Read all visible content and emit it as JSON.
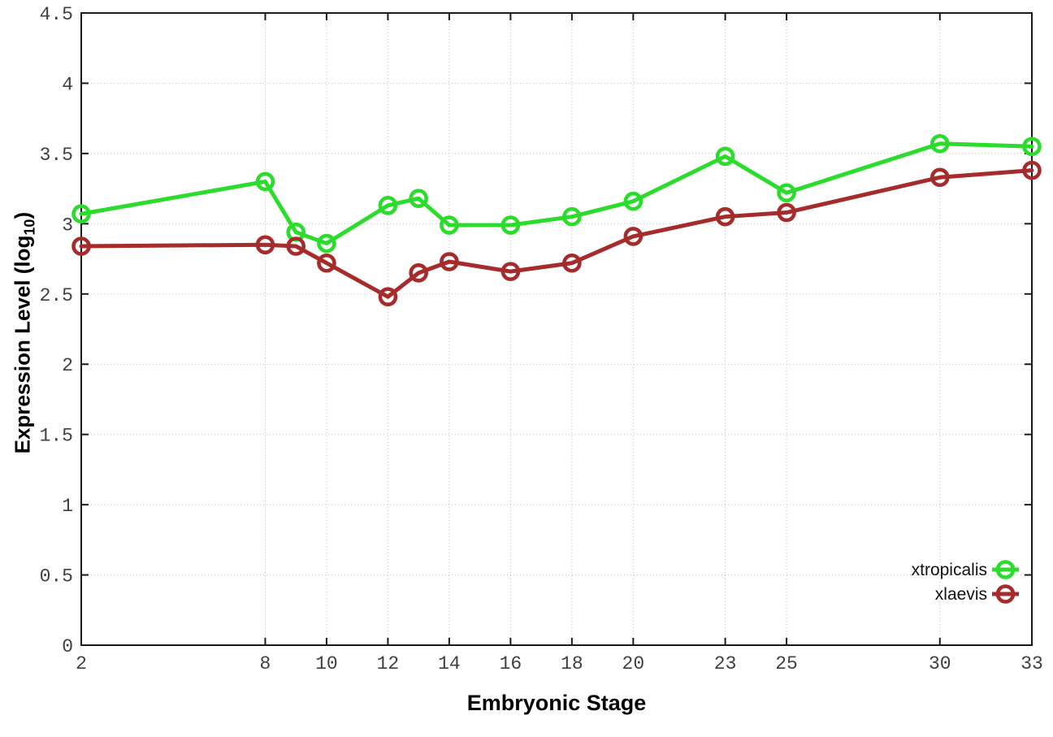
{
  "chart_data": {
    "type": "line",
    "title": "",
    "xlabel": "Embryonic Stage",
    "ylabel": "Expression Level (log10)",
    "ylabel_parts": {
      "prefix": "Expression Level (log",
      "sub": "10",
      "suffix": ")"
    },
    "xlim": [
      2,
      33
    ],
    "ylim": [
      0,
      4.5
    ],
    "grid": true,
    "legend_position": "bottom-right-inside",
    "marker": "open-circle",
    "x_ticks": [
      {
        "value": 2,
        "label": "2"
      },
      {
        "value": 8,
        "label": "8"
      },
      {
        "value": 10,
        "label": "10"
      },
      {
        "value": 12,
        "label": "12"
      },
      {
        "value": 14,
        "label": "14"
      },
      {
        "value": 16,
        "label": "16"
      },
      {
        "value": 18,
        "label": "18"
      },
      {
        "value": 20,
        "label": "20"
      },
      {
        "value": 23,
        "label": "23"
      },
      {
        "value": 25,
        "label": "25"
      },
      {
        "value": 30,
        "label": "30"
      },
      {
        "value": 33,
        "label": "33"
      }
    ],
    "y_ticks": [
      {
        "value": 0,
        "label": "0"
      },
      {
        "value": 0.5,
        "label": "0.5"
      },
      {
        "value": 1,
        "label": "1"
      },
      {
        "value": 1.5,
        "label": "1.5"
      },
      {
        "value": 2,
        "label": "2"
      },
      {
        "value": 2.5,
        "label": "2.5"
      },
      {
        "value": 3,
        "label": "3"
      },
      {
        "value": 3.5,
        "label": "3.5"
      },
      {
        "value": 4,
        "label": "4"
      },
      {
        "value": 4.5,
        "label": "4.5"
      }
    ],
    "x": [
      2,
      8,
      9,
      10,
      12,
      13,
      14,
      16,
      18,
      20,
      23,
      25,
      30,
      33
    ],
    "series": [
      {
        "name": "xtropicalis",
        "color": "#2cdc2c",
        "values": [
          3.07,
          3.3,
          2.94,
          2.86,
          3.13,
          3.18,
          2.99,
          2.99,
          3.05,
          3.16,
          3.48,
          3.22,
          3.57,
          3.55
        ]
      },
      {
        "name": "xlaevis",
        "color": "#a62b2b",
        "values": [
          2.84,
          2.85,
          2.84,
          2.72,
          2.48,
          2.65,
          2.73,
          2.66,
          2.72,
          2.91,
          3.05,
          3.08,
          3.33,
          3.38
        ]
      }
    ],
    "style_colors": {
      "frame": "#1a1a1a",
      "grid": "#bdbdbd",
      "tick_text": "#3f3f3f"
    }
  }
}
